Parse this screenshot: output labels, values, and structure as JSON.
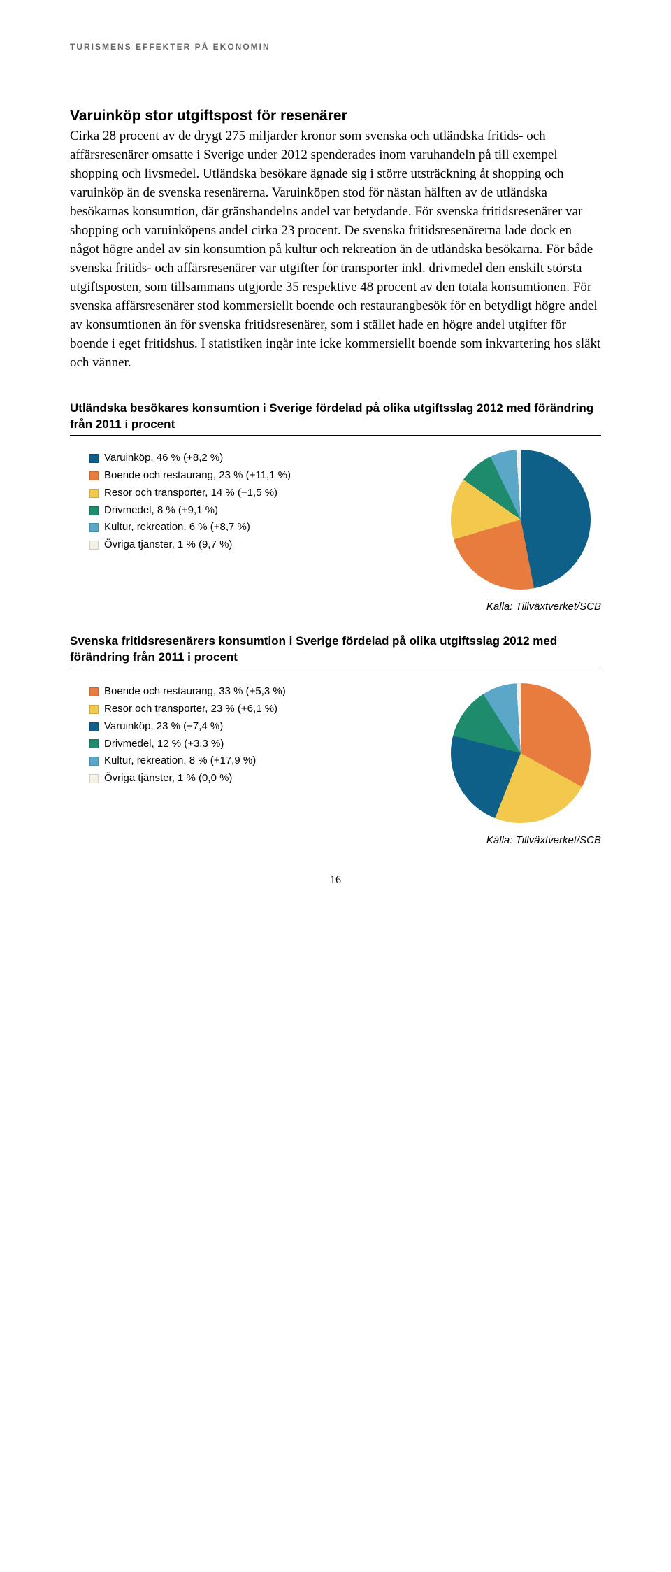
{
  "header_label": "TURISMENS EFFEKTER PÅ EKONOMIN",
  "section_title": "Varuinköp stor utgiftspost för resenärer",
  "body_text": "Cirka 28 procent av de drygt 275 miljarder kronor som svenska och utländska fritids- och affärsresenärer omsatte i Sverige under 2012 spenderades inom varuhandeln på till exempel shopping och livsmedel. Utländska besökare ägnade sig i större utsträckning åt shopping och varuinköp än de svenska resenärerna. Varuinköpen stod för nästan hälften av de utländska besökarnas konsumtion, där gränshandelns andel var betydande. För svenska fritidsresenärer var shopping och varuinköpens andel cirka 23 procent. De svenska fritidsresenärerna lade dock en något högre andel av sin konsumtion på kultur och rekreation än de utländska besökarna. För både svenska fritids- och affärsresenärer var utgifter för transporter inkl. drivmedel den enskilt största utgiftsposten, som tillsammans utgjorde 35 respektive 48 procent av den totala konsumtionen. För svenska affärsresenärer stod kommersiellt boende och restaurangbesök för en betydligt högre andel av konsumtionen än för svenska fritidsresenärer, som i stället hade en högre andel utgifter för boende i eget fritidshus. I statistiken ingår inte icke kommersiellt boende som inkvartering hos släkt och vänner.",
  "chart1": {
    "title": "Utländska besökares konsumtion i Sverige fördelad på olika utgiftsslag 2012 med förändring från 2011 i procent",
    "type": "pie",
    "background_color": "#ffffff",
    "slices": [
      {
        "label": "Varuinköp, 46 % (+8,2 %)",
        "value": 46,
        "color": "#0f6089"
      },
      {
        "label": "Boende och restaurang, 23 % (+11,1 %)",
        "value": 23,
        "color": "#e87b3e"
      },
      {
        "label": "Resor och transporter, 14 % (−1,5 %)",
        "value": 14,
        "color": "#f2c94c"
      },
      {
        "label": "Drivmedel, 8 % (+9,1 %)",
        "value": 8,
        "color": "#1e8b6d"
      },
      {
        "label": "Kultur, rekreation, 6 % (+8,7 %)",
        "value": 6,
        "color": "#5aa7c8"
      },
      {
        "label": "Övriga tjänster, 1 % (9,7 %)",
        "value": 1,
        "color": "#f5f1e6"
      }
    ],
    "source": "Källa: Tillväxtverket/SCB"
  },
  "chart2": {
    "title": "Svenska fritidsresenärers konsumtion i Sverige fördelad på olika utgiftsslag 2012 med förändring från 2011 i procent",
    "type": "pie",
    "background_color": "#ffffff",
    "slices": [
      {
        "label": "Boende och restaurang, 33 % (+5,3 %)",
        "value": 33,
        "color": "#e87b3e"
      },
      {
        "label": "Resor och transporter, 23 % (+6,1 %)",
        "value": 23,
        "color": "#f2c94c"
      },
      {
        "label": "Varuinköp, 23 % (−7,4 %)",
        "value": 23,
        "color": "#0f6089"
      },
      {
        "label": "Drivmedel, 12 % (+3,3 %)",
        "value": 12,
        "color": "#1e8b6d"
      },
      {
        "label": "Kultur, rekreation, 8 % (+17,9 %)",
        "value": 8,
        "color": "#5aa7c8"
      },
      {
        "label": "Övriga tjänster, 1 % (0,0 %)",
        "value": 1,
        "color": "#f5f1e6"
      }
    ],
    "source": "Källa: Tillväxtverket/SCB"
  },
  "page_number": "16"
}
